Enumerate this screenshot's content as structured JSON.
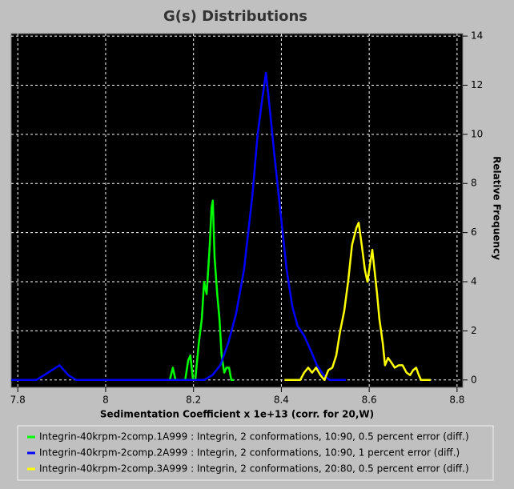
{
  "chart_data": {
    "type": "line",
    "title": "G(s) Distributions",
    "x_label": "Sedimentation Coefficient x 1e+13 (corr. for 20,W)",
    "y_label": "Relative Frequency",
    "xlim": [
      7.785,
      8.813
    ],
    "ylim": [
      -0.3,
      14.1
    ],
    "xticks": [
      {
        "value": 7.8,
        "label": "7.8"
      },
      8,
      {
        "value": 8.2,
        "label": "8.2"
      },
      {
        "value": 8.4,
        "label": "8.4"
      },
      {
        "value": 8.6,
        "label": "8.6"
      },
      {
        "value": 8.8,
        "label": "8.8"
      }
    ],
    "yticks": [
      0,
      2,
      4,
      6,
      8,
      10,
      12,
      14
    ],
    "grid": true,
    "y_axis_side": "right",
    "legend": "bottom",
    "series": [
      {
        "name": "Integrin-40krpm-2comp.1A999 : Integrin, 2 conformations, 10:90, 0.5 percent error (diff.)",
        "color": "#00ff00",
        "x": [
          8.146,
          8.153,
          8.159,
          8.181,
          8.188,
          8.193,
          8.199,
          8.204,
          8.212,
          8.219,
          8.224,
          8.23,
          8.237,
          8.241,
          8.244,
          8.248,
          8.254,
          8.259,
          8.264,
          8.27,
          8.275,
          8.281,
          8.286,
          8.292
        ],
        "values": [
          0,
          0.5,
          0,
          0,
          0.8,
          1.0,
          0,
          0,
          1.5,
          2.5,
          4.0,
          3.5,
          5.5,
          7.0,
          7.3,
          5.0,
          3.5,
          2.5,
          1.0,
          0.3,
          0.5,
          0.5,
          0,
          0
        ]
      },
      {
        "name": "Integrin-40krpm-2comp.2A999 : Integrin, 2 conformations, 10:90, 1 percent error (diff.)",
        "color": "#0000ff",
        "x": [
          7.785,
          7.842,
          7.869,
          7.895,
          7.915,
          7.933,
          8.224,
          8.243,
          8.261,
          8.279,
          8.297,
          8.315,
          8.334,
          8.346,
          8.357,
          8.365,
          8.374,
          8.385,
          8.397,
          8.412,
          8.425,
          8.437,
          8.452,
          8.467,
          8.481,
          8.496,
          8.51,
          8.547
        ],
        "values": [
          0,
          0,
          0.3,
          0.6,
          0.2,
          0,
          0,
          0.2,
          0.6,
          1.5,
          2.7,
          4.5,
          7.5,
          10,
          11.5,
          12.5,
          11,
          9,
          7,
          4.5,
          3,
          2.2,
          1.8,
          1.2,
          0.6,
          0.2,
          0,
          0
        ]
      },
      {
        "name": "Integrin-40krpm-2comp.3A999 : Integrin, 2 conformations, 20:80, 0.5 percent error (diff.)",
        "color": "#ffff00",
        "x": [
          8.407,
          8.443,
          8.452,
          8.461,
          8.47,
          8.479,
          8.489,
          8.498,
          8.507,
          8.516,
          8.525,
          8.534,
          8.543,
          8.552,
          8.561,
          8.571,
          8.576,
          8.583,
          8.59,
          8.596,
          8.601,
          8.607,
          8.612,
          8.618,
          8.623,
          8.631,
          8.636,
          8.643,
          8.651,
          8.658,
          8.667,
          8.676,
          8.685,
          8.693,
          8.7,
          8.707,
          8.713,
          8.718,
          8.74
        ],
        "values": [
          0,
          0,
          0.3,
          0.5,
          0.3,
          0.5,
          0.2,
          0,
          0.4,
          0.5,
          1.0,
          2.0,
          2.8,
          4.0,
          5.5,
          6.2,
          6.4,
          5.5,
          4.5,
          4.0,
          4.6,
          5.3,
          4.5,
          3.5,
          2.5,
          1.5,
          0.6,
          0.9,
          0.7,
          0.5,
          0.6,
          0.6,
          0.3,
          0.2,
          0.4,
          0.5,
          0.2,
          0,
          0
        ]
      }
    ]
  }
}
